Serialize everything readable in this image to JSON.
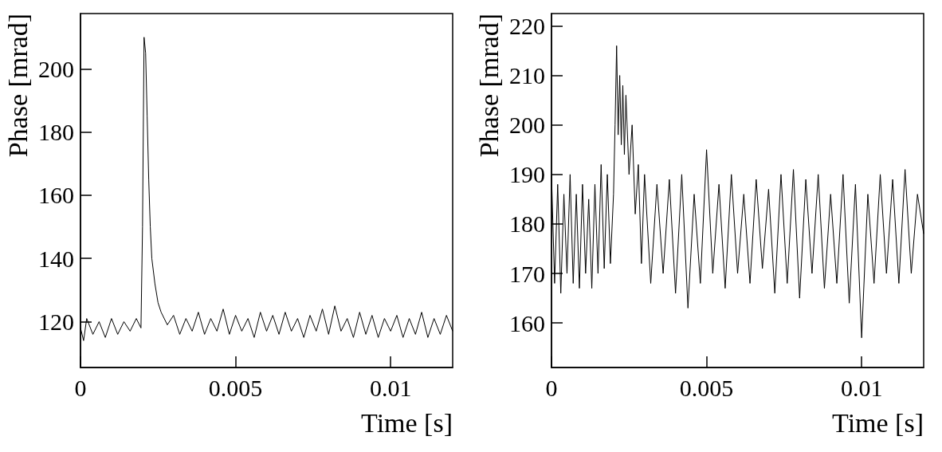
{
  "chart_data": [
    {
      "type": "line",
      "xlabel": "Time [s]",
      "ylabel": "Phase [mrad]",
      "xlim": [
        0,
        0.012
      ],
      "ylim": [
        105.5,
        217.5
      ],
      "xticks": [
        0,
        0.005,
        0.01
      ],
      "yticks": [
        120,
        140,
        160,
        180,
        200
      ],
      "grid": false,
      "marker": "none",
      "line_style": "solid",
      "series": [
        {
          "color": "#000000",
          "x": [
            0,
            0.0001,
            0.0002,
            0.0004,
            0.0006,
            0.0008,
            0.001,
            0.0012,
            0.0014,
            0.0016,
            0.0018,
            0.00195,
            0.002,
            0.00205,
            0.0021,
            0.00215,
            0.0022,
            0.00225,
            0.0023,
            0.0024,
            0.0025,
            0.0026,
            0.0028,
            0.003,
            0.0032,
            0.0034,
            0.0036,
            0.0038,
            0.004,
            0.0042,
            0.0044,
            0.0046,
            0.0048,
            0.005,
            0.0052,
            0.0054,
            0.0056,
            0.0058,
            0.006,
            0.0062,
            0.0064,
            0.0066,
            0.0068,
            0.007,
            0.0072,
            0.0074,
            0.0076,
            0.0078,
            0.008,
            0.0082,
            0.0084,
            0.0086,
            0.0088,
            0.009,
            0.0092,
            0.0094,
            0.0096,
            0.0098,
            0.01,
            0.0102,
            0.0104,
            0.0106,
            0.0108,
            0.011,
            0.0112,
            0.0114,
            0.0116,
            0.0118,
            0.012
          ],
          "values": [
            118,
            114,
            121,
            116,
            120,
            115,
            121,
            116,
            120,
            117,
            121,
            118,
            150,
            210,
            205,
            185,
            165,
            150,
            140,
            132,
            126,
            123,
            119,
            122,
            116,
            121,
            117,
            123,
            116,
            121,
            117,
            124,
            116,
            122,
            117,
            121,
            115,
            123,
            117,
            122,
            116,
            123,
            117,
            121,
            115,
            122,
            117,
            124,
            116,
            125,
            117,
            121,
            115,
            123,
            116,
            122,
            115,
            121,
            117,
            122,
            115,
            121,
            116,
            123,
            115,
            121,
            116,
            122,
            117
          ]
        }
      ]
    },
    {
      "type": "line",
      "xlabel": "Time [s]",
      "ylabel": "Phase [mrad]",
      "xlim": [
        0,
        0.012
      ],
      "ylim": [
        151,
        222.5
      ],
      "xticks": [
        0,
        0.005,
        0.01
      ],
      "yticks": [
        160,
        170,
        180,
        190,
        200,
        210,
        220
      ],
      "grid": false,
      "marker": "none",
      "line_style": "solid",
      "series": [
        {
          "color": "#000000",
          "x": [
            0,
            0.0001,
            0.0002,
            0.0003,
            0.0004,
            0.0005,
            0.0006,
            0.0007,
            0.0008,
            0.0009,
            0.001,
            0.0011,
            0.0012,
            0.0013,
            0.0014,
            0.0015,
            0.0016,
            0.0017,
            0.0018,
            0.0019,
            0.002,
            0.00205,
            0.0021,
            0.00215,
            0.0022,
            0.00225,
            0.0023,
            0.00235,
            0.0024,
            0.0025,
            0.0026,
            0.0027,
            0.0028,
            0.0029,
            0.003,
            0.0032,
            0.0034,
            0.0036,
            0.0038,
            0.004,
            0.0042,
            0.0044,
            0.0046,
            0.0048,
            0.005,
            0.0052,
            0.0054,
            0.0056,
            0.0058,
            0.006,
            0.0062,
            0.0064,
            0.0066,
            0.0068,
            0.007,
            0.0072,
            0.0074,
            0.0076,
            0.0078,
            0.008,
            0.0082,
            0.0084,
            0.0086,
            0.0088,
            0.009,
            0.0092,
            0.0094,
            0.0096,
            0.0098,
            0.01,
            0.0102,
            0.0104,
            0.0106,
            0.0108,
            0.011,
            0.0112,
            0.0114,
            0.0116,
            0.0118,
            0.012
          ],
          "values": [
            190,
            168,
            188,
            166,
            186,
            170,
            190,
            168,
            186,
            167,
            188,
            170,
            185,
            167,
            188,
            170,
            192,
            171,
            190,
            172,
            186,
            200,
            216,
            198,
            210,
            196,
            208,
            194,
            206,
            190,
            200,
            182,
            192,
            172,
            190,
            168,
            188,
            170,
            189,
            166,
            190,
            163,
            186,
            168,
            195,
            170,
            188,
            167,
            190,
            170,
            186,
            168,
            189,
            171,
            187,
            166,
            190,
            168,
            191,
            165,
            189,
            170,
            190,
            167,
            186,
            168,
            190,
            164,
            188,
            157,
            186,
            168,
            190,
            170,
            189,
            168,
            191,
            170,
            186,
            178
          ]
        }
      ]
    }
  ]
}
